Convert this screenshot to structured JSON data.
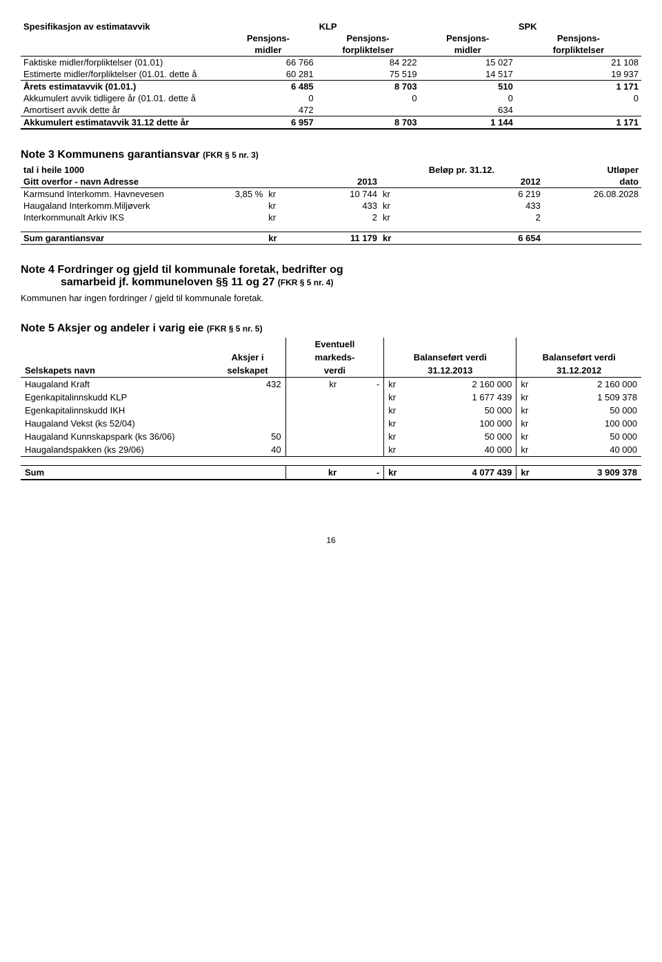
{
  "spec_table": {
    "title": "Spesifikasjon av estimatavvik",
    "group1": "KLP",
    "group2": "SPK",
    "col1a": "Pensjons-",
    "col1b": "midler",
    "col2a": "Pensjons-",
    "col2b": "forpliktelser",
    "col3a": "Pensjons-",
    "col3b": "midler",
    "col4a": "Pensjons-",
    "col4b": "forpliktelser",
    "rows": [
      {
        "label": "Faktiske midler/forpliktelser (01.01)",
        "a": "66 766",
        "b": "84 222",
        "c": "15 027",
        "d": "21 108"
      },
      {
        "label": "Estimerte midler/forpliktelser (01.01. dette å",
        "a": "60 281",
        "b": "75 519",
        "c": "14 517",
        "d": "19 937"
      },
      {
        "label": "Årets estimatavvik (01.01.)",
        "a": "6 485",
        "b": "8 703",
        "c": "510",
        "d": "1 171",
        "bold": true,
        "topline": true
      },
      {
        "label": "Akkumulert avvik tidligere år (01.01. dette å",
        "a": "0",
        "b": "0",
        "c": "0",
        "d": "0"
      },
      {
        "label": "Amortisert avvik dette år",
        "a": "472",
        "b": "",
        "c": "634",
        "d": ""
      },
      {
        "label": "Akkumulert estimatavvik 31.12 dette år",
        "a": "6 957",
        "b": "8 703",
        "c": "1 144",
        "d": "1 171",
        "bold": true,
        "topline": true,
        "thick": true
      }
    ]
  },
  "note3": {
    "title": "Note 3   Kommunens garantiansvar",
    "sub": "(FKR § 5 nr. 3)",
    "hdr_tal": "tal i heile 1000",
    "hdr_belop": "Beløp pr. 31.12.",
    "hdr_utloper": "Utløper",
    "hdr_gitt": "Gitt overfor - navn Adresse",
    "hdr_2013": "2013",
    "hdr_2012": "2012",
    "hdr_dato": "dato",
    "rows": [
      {
        "name": "Karmsund Interkomm. Havnevesen",
        "pct": "3,85 %",
        "kr1": "kr",
        "v1": "10 744",
        "kr2": "kr",
        "v2": "6 219",
        "dato": "26.08.2028"
      },
      {
        "name": "Haugaland Interkomm.Miljøverk",
        "pct": "",
        "kr1": "kr",
        "v1": "433",
        "kr2": "kr",
        "v2": "433",
        "dato": ""
      },
      {
        "name": "Interkommunalt Arkiv IKS",
        "pct": "",
        "kr1": "kr",
        "v1": "2",
        "kr2": "kr",
        "v2": "2",
        "dato": ""
      }
    ],
    "sum_label": "Sum garantiansvar",
    "sum_kr1": "kr",
    "sum_v1": "11 179",
    "sum_kr2": "kr",
    "sum_v2": "6 654"
  },
  "note4": {
    "title_a": "Note 4  Fordringer og gjeld til kommunale foretak, bedrifter og",
    "title_b": "samarbeid jf. kommuneloven §§ 11 og 27",
    "sub": "(FKR § 5 nr. 4)",
    "body": "Kommunen har ingen fordringer / gjeld til kommunale foretak."
  },
  "note5": {
    "title": "Note 5   Aksjer og andeler i varig eie",
    "sub": "(FKR § 5 nr. 5)",
    "hdr_selskap": "Selskapets navn",
    "hdr_aksjer_a": "Aksjer i",
    "hdr_aksjer_b": "selskapet",
    "hdr_mkt_a": "Eventuell",
    "hdr_mkt_b": "markeds-",
    "hdr_mkt_c": "verdi",
    "hdr_bv13_a": "Balanseført verdi",
    "hdr_bv13_b": "31.12.2013",
    "hdr_bv12_a": "Balanseført verdi",
    "hdr_bv12_b": "31.12.2012",
    "rows": [
      {
        "name": "Haugaland Kraft",
        "aksjer": "432",
        "mkt_kr": "kr",
        "mkt": "-",
        "kr13": "kr",
        "v13": "2 160 000",
        "kr12": "kr",
        "v12": "2 160 000"
      },
      {
        "name": "Egenkapitalinnskudd KLP",
        "aksjer": "",
        "mkt_kr": "",
        "mkt": "",
        "kr13": "kr",
        "v13": "1 677 439",
        "kr12": "kr",
        "v12": "1 509 378"
      },
      {
        "name": "Egenkapitalinnskudd IKH",
        "aksjer": "",
        "mkt_kr": "",
        "mkt": "",
        "kr13": "kr",
        "v13": "50 000",
        "kr12": "kr",
        "v12": "50 000"
      },
      {
        "name": "Haugaland Vekst (ks 52/04)",
        "aksjer": "",
        "mkt_kr": "",
        "mkt": "",
        "kr13": "kr",
        "v13": "100 000",
        "kr12": "kr",
        "v12": "100 000"
      },
      {
        "name": "Haugaland Kunnskapspark (ks 36/06)",
        "aksjer": "50",
        "mkt_kr": "",
        "mkt": "",
        "kr13": "kr",
        "v13": "50 000",
        "kr12": "kr",
        "v12": "50 000"
      },
      {
        "name": "Haugalandspakken (ks 29/06)",
        "aksjer": "40",
        "mkt_kr": "",
        "mkt": "",
        "kr13": "kr",
        "v13": "40 000",
        "kr12": "kr",
        "v12": "40 000"
      }
    ],
    "sum_label": "Sum",
    "sum_mkt_kr": "kr",
    "sum_mkt": "-",
    "sum_kr13": "kr",
    "sum_v13": "4 077 439",
    "sum_kr12": "kr",
    "sum_v12": "3 909 378"
  },
  "page_no": "16"
}
